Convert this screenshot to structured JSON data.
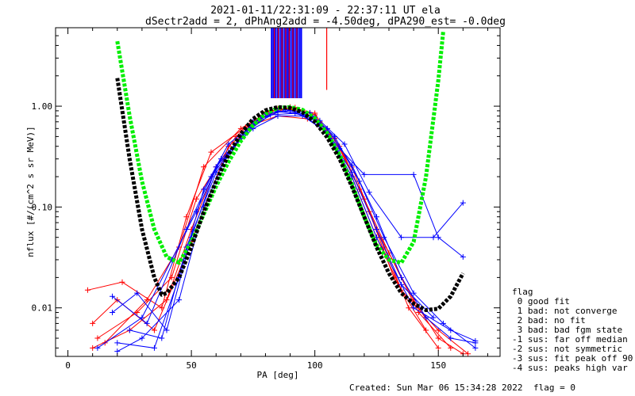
{
  "chart_data": {
    "type": "line",
    "title_lines": [
      "2021-01-11/22:31:09 - 22:37:11 UT ela",
      "dSectr2add = 2, dPhAng2add = -4.50deg, dPA290_est=  -0.0deg"
    ],
    "xlabel": "PA [deg]",
    "ylabel": "nflux [#/(cm^2 s sr MeV)]",
    "xlim": [
      -5,
      175
    ],
    "ylim": [
      0.0033,
      6.0
    ],
    "yscale": "log",
    "x_ticks": [
      0,
      50,
      100,
      150
    ],
    "y_ticks": [
      {
        "value": 0.01,
        "label": "0.01"
      },
      {
        "value": 0.1,
        "label": "0.10"
      },
      {
        "value": 1.0,
        "label": "1.00"
      }
    ],
    "fit_curves": [
      {
        "color": "#00ee00",
        "x": [
          20,
          25,
          30,
          35,
          40,
          45,
          50,
          55,
          60,
          65,
          70,
          75,
          80,
          85,
          90,
          95,
          100,
          105,
          110,
          115,
          120,
          125,
          130,
          135,
          140,
          145,
          150,
          152
        ],
        "y": [
          4.4,
          0.8,
          0.18,
          0.06,
          0.032,
          0.028,
          0.045,
          0.085,
          0.16,
          0.28,
          0.45,
          0.65,
          0.84,
          0.96,
          0.98,
          0.92,
          0.76,
          0.54,
          0.33,
          0.17,
          0.08,
          0.042,
          0.03,
          0.028,
          0.045,
          0.2,
          1.8,
          5.5
        ]
      },
      {
        "color": "#000000",
        "x": [
          20,
          25,
          30,
          35,
          38,
          40,
          45,
          50,
          55,
          60,
          65,
          70,
          75,
          80,
          85,
          90,
          95,
          100,
          105,
          110,
          115,
          120,
          125,
          130,
          135,
          140,
          145,
          150,
          155,
          160
        ],
        "y": [
          1.9,
          0.3,
          0.06,
          0.02,
          0.0135,
          0.014,
          0.02,
          0.04,
          0.09,
          0.18,
          0.33,
          0.53,
          0.75,
          0.91,
          0.98,
          0.96,
          0.87,
          0.7,
          0.49,
          0.3,
          0.16,
          0.08,
          0.04,
          0.022,
          0.014,
          0.011,
          0.0095,
          0.0098,
          0.013,
          0.022
        ]
      }
    ],
    "data_lines": [
      {
        "color": "#ff0000",
        "x": [
          10,
          25,
          40,
          50,
          60,
          75,
          85,
          95,
          105,
          115,
          125,
          140,
          150,
          160
        ],
        "y": [
          0.004,
          0.006,
          0.012,
          0.06,
          0.25,
          0.68,
          0.95,
          0.9,
          0.6,
          0.25,
          0.06,
          0.012,
          0.005,
          0.0035
        ]
      },
      {
        "color": "#ff0000",
        "x": [
          8,
          22,
          38,
          48,
          58,
          72,
          85,
          97,
          108,
          118,
          128,
          138,
          150
        ],
        "y": [
          0.015,
          0.018,
          0.01,
          0.08,
          0.35,
          0.62,
          0.8,
          0.75,
          0.48,
          0.15,
          0.04,
          0.01,
          0.004
        ]
      },
      {
        "color": "#ff0000",
        "x": [
          12,
          28,
          42,
          52,
          68,
          80,
          92,
          102,
          112,
          122,
          132,
          145
        ],
        "y": [
          0.005,
          0.009,
          0.02,
          0.12,
          0.5,
          0.88,
          0.97,
          0.7,
          0.32,
          0.09,
          0.02,
          0.006
        ]
      },
      {
        "color": "#ff0000",
        "x": [
          15,
          32,
          45,
          55,
          70,
          82,
          90,
          100,
          110,
          120,
          130,
          142,
          155
        ],
        "y": [
          0.0045,
          0.012,
          0.04,
          0.25,
          0.6,
          0.9,
          0.95,
          0.82,
          0.4,
          0.12,
          0.035,
          0.009,
          0.004
        ]
      },
      {
        "color": "#ff0000",
        "x": [
          10,
          20,
          35,
          50,
          65,
          80,
          90,
          100,
          115,
          125,
          135,
          150,
          162
        ],
        "y": [
          0.007,
          0.012,
          0.006,
          0.045,
          0.4,
          0.8,
          0.98,
          0.85,
          0.2,
          0.05,
          0.015,
          0.006,
          0.0035
        ]
      },
      {
        "color": "#0000ff",
        "x": [
          18,
          28,
          40,
          50,
          60,
          75,
          85,
          95,
          105,
          115,
          125,
          135,
          145,
          155,
          165
        ],
        "y": [
          0.009,
          0.014,
          0.006,
          0.05,
          0.25,
          0.65,
          0.88,
          0.85,
          0.6,
          0.26,
          0.08,
          0.02,
          0.008,
          0.005,
          0.0045
        ]
      },
      {
        "color": "#0000ff",
        "x": [
          20,
          35,
          45,
          55,
          65,
          78,
          88,
          98,
          108,
          118,
          128,
          140,
          152,
          165
        ],
        "y": [
          0.0045,
          0.004,
          0.02,
          0.15,
          0.42,
          0.75,
          0.92,
          0.86,
          0.5,
          0.18,
          0.05,
          0.014,
          0.007,
          0.004
        ]
      },
      {
        "color": "#0000ff",
        "x": [
          12,
          30,
          42,
          52,
          62,
          75,
          85,
          95,
          105,
          115,
          125,
          135,
          148
        ],
        "y": [
          0.004,
          0.008,
          0.03,
          0.09,
          0.3,
          0.6,
          0.8,
          0.8,
          0.55,
          0.22,
          0.06,
          0.017,
          0.008
        ]
      },
      {
        "color": "#0000ff",
        "x": [
          18,
          32,
          48,
          58,
          70,
          80,
          90,
          100,
          110,
          120,
          140,
          150,
          160
        ],
        "y": [
          0.013,
          0.007,
          0.06,
          0.2,
          0.5,
          0.85,
          0.9,
          0.78,
          0.38,
          0.21,
          0.21,
          0.05,
          0.032
        ]
      },
      {
        "color": "#0000ff",
        "x": [
          25,
          38,
          48,
          60,
          72,
          82,
          92,
          102,
          112,
          122,
          135,
          148,
          160
        ],
        "y": [
          0.006,
          0.005,
          0.04,
          0.22,
          0.55,
          0.82,
          0.85,
          0.72,
          0.42,
          0.14,
          0.05,
          0.05,
          0.11
        ]
      },
      {
        "color": "#0000ff",
        "x": [
          20,
          30,
          45,
          55,
          65,
          75,
          85,
          95,
          105,
          115,
          125,
          140,
          155,
          165
        ],
        "y": [
          0.0037,
          0.005,
          0.012,
          0.1,
          0.35,
          0.7,
          0.9,
          0.82,
          0.55,
          0.2,
          0.05,
          0.01,
          0.006,
          0.0047
        ]
      }
    ],
    "peak_spikes": [
      {
        "color": "#0000ff",
        "x": [
          82.5,
          83.2,
          84.0,
          84.8,
          85.5,
          86.3,
          87.0,
          87.8,
          88.5,
          89.2,
          90.0,
          90.8,
          91.5,
          92.3,
          93.0,
          93.8,
          94.5
        ]
      },
      {
        "color": "#ff0000",
        "x": [
          83.6,
          85.2,
          86.7,
          88.2,
          89.6,
          91.1,
          92.7,
          104.8
        ]
      }
    ],
    "legend": {
      "position": "right",
      "title": "flag",
      "entries": [
        " 0 good fit",
        " 1 bad: not converge",
        " 2 bad: no fit",
        " 3 bad: bad fgm state",
        "-1 sus: far off median",
        "-2 sus: not symmetric",
        "-3 sus: fit peak off 90",
        "-4 sus: peaks high var"
      ]
    },
    "footer": {
      "created": "Created: Sun Mar 06 15:34:28 2022",
      "flag": "flag = 0"
    },
    "grid": false
  }
}
